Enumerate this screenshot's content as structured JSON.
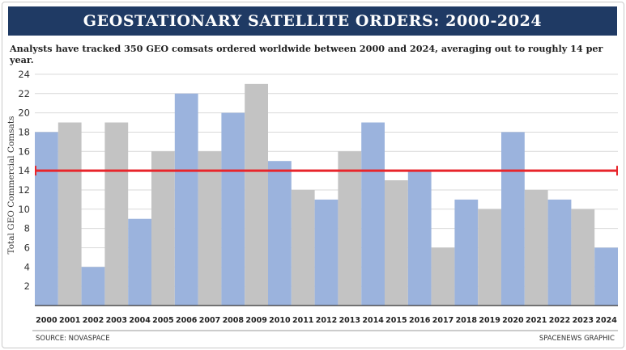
{
  "header": {
    "title": "GEOSTATIONARY SATELLITE ORDERS: 2000-2024",
    "subtitle": "Analysts have tracked 350 GEO comsats ordered worldwide between 2000 and 2024, averaging out to roughly 14 per year."
  },
  "footer": {
    "source": "SOURCE: NOVASPACE",
    "credit": "SPACENEWS GRAPHIC"
  },
  "colors": {
    "bar_blue": "#9bb3dd",
    "bar_gray": "#c3c3c3",
    "average_line": "#e8252b",
    "grid": "#d9d9d9",
    "title_bg": "#1f3a64"
  },
  "chart_data": {
    "type": "bar",
    "title": "GEOSTATIONARY SATELLITE ORDERS: 2000-2024",
    "ylabel": "Total GEO Commercial Comsats",
    "xlabel": "",
    "categories": [
      "2000",
      "2001",
      "2002",
      "2003",
      "2004",
      "2005",
      "2006",
      "2007",
      "2008",
      "2009",
      "2010",
      "2011",
      "2012",
      "2013",
      "2014",
      "2015",
      "2016",
      "2017",
      "2018",
      "2019",
      "2020",
      "2021",
      "2022",
      "2023",
      "2024"
    ],
    "values": [
      18,
      19,
      4,
      19,
      9,
      16,
      22,
      16,
      20,
      23,
      15,
      12,
      11,
      16,
      19,
      13,
      14,
      6,
      11,
      10,
      18,
      12,
      11,
      10,
      6
    ],
    "bar_colors": [
      "blue",
      "gray",
      "blue",
      "gray",
      "blue",
      "gray",
      "blue",
      "gray",
      "blue",
      "gray",
      "blue",
      "gray",
      "blue",
      "gray",
      "blue",
      "gray",
      "blue",
      "gray",
      "blue",
      "gray",
      "blue",
      "gray",
      "blue",
      "gray",
      "blue"
    ],
    "average": 14,
    "ylim": [
      0,
      25
    ],
    "yticks": [
      2,
      4,
      6,
      8,
      10,
      12,
      14,
      16,
      18,
      20,
      22,
      24
    ],
    "grid": true
  }
}
